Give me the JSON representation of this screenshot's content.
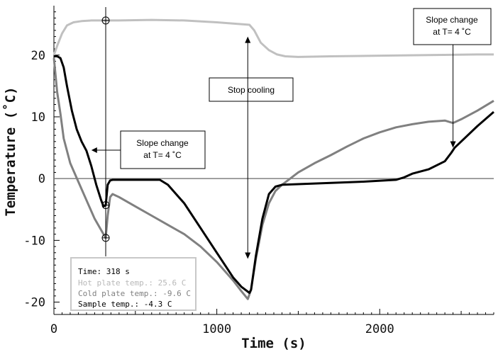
{
  "chart_data": {
    "type": "line",
    "title": "",
    "xlabel": "Time (s)",
    "ylabel": "Temperature (˚C)",
    "xlim": [
      0,
      2700
    ],
    "ylim": [
      -22,
      28
    ],
    "x_ticks": [
      0,
      1000,
      2000
    ],
    "y_ticks": [
      -20,
      -10,
      0,
      10,
      20
    ],
    "grid": false,
    "colors": {
      "hot_plate": "#c0c0c0",
      "cold_plate": "#808080",
      "sample": "#000000",
      "zero_line": "#808080",
      "annotation": "#000000"
    },
    "series": [
      {
        "name": "Hot plate temp.",
        "color": "#c0c0c0",
        "x": [
          0,
          20,
          50,
          80,
          120,
          170,
          230,
          318,
          400,
          600,
          800,
          1000,
          1100,
          1200,
          1230,
          1270,
          1320,
          1370,
          1420,
          1500,
          1700,
          2000,
          2300,
          2600,
          2700
        ],
        "y": [
          20,
          21.5,
          23.5,
          24.8,
          25.3,
          25.5,
          25.6,
          25.6,
          25.6,
          25.7,
          25.6,
          25.3,
          25.1,
          24.9,
          24.0,
          22.0,
          20.8,
          20.1,
          19.8,
          19.7,
          19.8,
          19.9,
          20.0,
          20.1,
          20.1
        ]
      },
      {
        "name": "Cold plate temp.",
        "color": "#808080",
        "x": [
          0,
          20,
          40,
          60,
          100,
          150,
          200,
          250,
          300,
          318,
          330,
          345,
          360,
          400,
          500,
          600,
          700,
          800,
          900,
          1000,
          1100,
          1150,
          1190,
          1210,
          1240,
          1280,
          1320,
          1360,
          1400,
          1450,
          1500,
          1600,
          1700,
          1800,
          1900,
          2000,
          2100,
          2200,
          2300,
          2400,
          2450,
          2500,
          2600,
          2700
        ],
        "y": [
          19.5,
          14,
          10.5,
          6.5,
          2.5,
          -0.5,
          -3.5,
          -6.5,
          -8.8,
          -9.6,
          -6.0,
          -3.0,
          -2.5,
          -3.0,
          -4.5,
          -6.0,
          -7.5,
          -9.0,
          -11.0,
          -13.5,
          -16.5,
          -18.2,
          -19.5,
          -18.0,
          -13.0,
          -7.5,
          -4.0,
          -2.0,
          -1.0,
          0.0,
          1.0,
          2.5,
          3.8,
          5.2,
          6.5,
          7.5,
          8.3,
          8.8,
          9.2,
          9.4,
          9.0,
          9.6,
          11.0,
          12.6
        ]
      },
      {
        "name": "Sample temp.",
        "color": "#000000",
        "x": [
          0,
          20,
          40,
          60,
          80,
          110,
          140,
          170,
          200,
          230,
          260,
          290,
          305,
          318,
          330,
          345,
          360,
          400,
          500,
          600,
          650,
          700,
          750,
          800,
          900,
          1000,
          1100,
          1150,
          1200,
          1210,
          1240,
          1280,
          1320,
          1360,
          1400,
          1500,
          1700,
          1900,
          2100,
          2150,
          2200,
          2300,
          2400,
          2440,
          2460,
          2500,
          2600,
          2700
        ],
        "y": [
          19.8,
          19.8,
          19.5,
          18.0,
          15.0,
          11.0,
          8.0,
          6.0,
          4.5,
          2.0,
          -1.0,
          -3.5,
          -4.5,
          -4.3,
          -1.0,
          -0.3,
          -0.2,
          -0.2,
          -0.2,
          -0.2,
          -0.2,
          -1.0,
          -2.5,
          -4.0,
          -8.0,
          -12.0,
          -16.0,
          -17.5,
          -18.5,
          -18.0,
          -12.5,
          -6.5,
          -2.5,
          -1.3,
          -1.0,
          -0.9,
          -0.7,
          -0.5,
          -0.2,
          0.2,
          0.8,
          1.5,
          2.8,
          4.2,
          5.0,
          6.0,
          8.5,
          10.8
        ]
      }
    ],
    "marker": {
      "x": 318,
      "points_y": [
        25.6,
        -9.6,
        -4.3
      ]
    },
    "annotations": [
      {
        "lines": [
          "Slope change",
          "at T= 4 ˚C"
        ],
        "arrow_to_x": 230,
        "arrow_to_y": 4.6
      },
      {
        "lines": [
          "Stop cooling"
        ],
        "arrow_to_x": 1190,
        "arrow_up_y": 23,
        "arrow_down_y": -13
      },
      {
        "lines": [
          "Slope change",
          "at T= 4 ˚C"
        ],
        "arrow_to_x": 2450,
        "arrow_to_y": 5.0
      }
    ]
  },
  "readout": {
    "time": "Time: 318 s",
    "hot": "Hot plate temp.: 25.6 C",
    "cold": "Cold plate temp.: -9.6 C",
    "sample": "Sample temp.: -4.3 C"
  }
}
